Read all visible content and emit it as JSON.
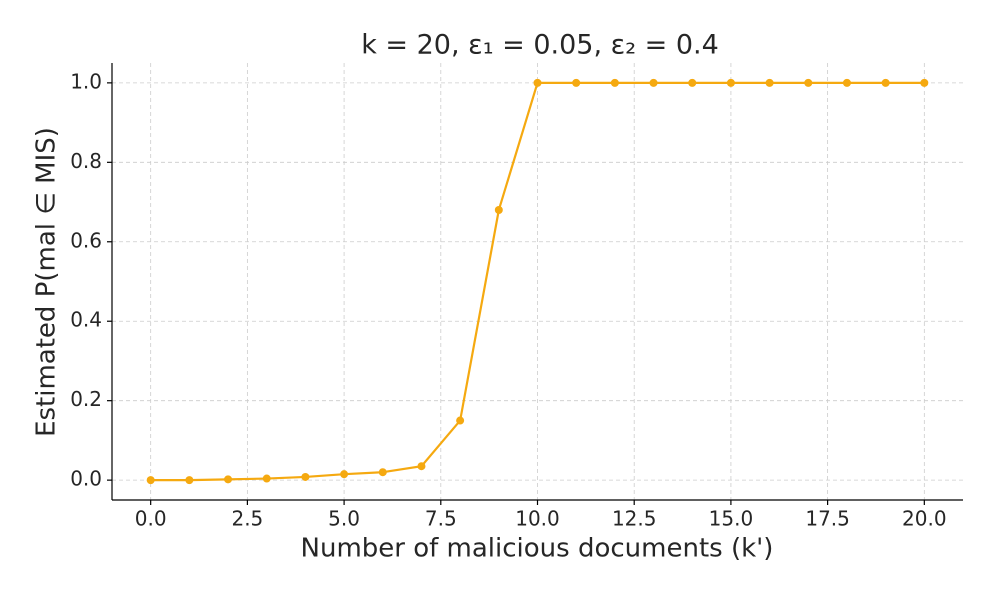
{
  "chart_data": {
    "type": "line",
    "title": "k = 20, ε₁ = 0.05, ε₂ = 0.4",
    "xlabel": "Number of malicious documents (k')",
    "ylabel": "Estimated P(mal ∈ MIS)",
    "x": [
      0,
      1,
      2,
      3,
      4,
      5,
      6,
      7,
      8,
      9,
      10,
      11,
      12,
      13,
      14,
      15,
      16,
      17,
      18,
      19,
      20
    ],
    "series": [
      {
        "name": "P(mal ∈ MIS)",
        "color": "#f5a910",
        "values": [
          0.0,
          0.0,
          0.002,
          0.004,
          0.008,
          0.015,
          0.02,
          0.035,
          0.15,
          0.68,
          1.0,
          1.0,
          1.0,
          1.0,
          1.0,
          1.0,
          1.0,
          1.0,
          1.0,
          1.0,
          1.0
        ]
      }
    ],
    "xlim": [
      -1,
      21
    ],
    "ylim": [
      -0.05,
      1.05
    ],
    "xticks": [
      {
        "value": 0,
        "label": "0.0"
      },
      2.5,
      {
        "value": 5,
        "label": "5.0"
      },
      7.5,
      {
        "value": 10,
        "label": "10.0"
      },
      12.5,
      {
        "value": 15,
        "label": "15.0"
      },
      17.5,
      {
        "value": 20,
        "label": "20.0"
      }
    ],
    "yticks": [
      {
        "value": 0,
        "label": "0.0"
      },
      0.2,
      0.4,
      0.6,
      0.8,
      {
        "value": 1,
        "label": "1.0"
      }
    ],
    "grid": true
  }
}
